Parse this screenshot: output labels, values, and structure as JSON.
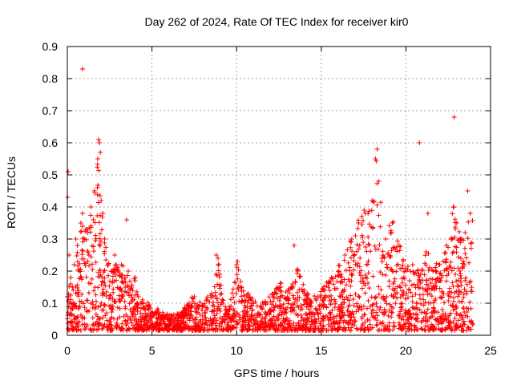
{
  "chart_data": {
    "type": "scatter",
    "title": "Day 262 of 2024, Rate Of TEC Index for receiver kir0",
    "xlabel": "GPS time / hours",
    "ylabel": "ROTI / TECUs",
    "xlim": [
      0,
      25
    ],
    "ylim": [
      0,
      0.9
    ],
    "x_ticks": [
      "0",
      "5",
      "10",
      "15",
      "20",
      "25"
    ],
    "y_ticks": [
      "0",
      "0.1",
      "0.2",
      "0.3",
      "0.4",
      "0.5",
      "0.6",
      "0.7",
      "0.8",
      "0.9"
    ],
    "grid": true,
    "marker": "+",
    "marker_color": "#ff0000",
    "series": [
      {
        "name": "ROTI",
        "x": [
          0.0,
          0.1,
          0.2,
          0.3,
          0.4,
          0.5,
          0.6,
          0.7,
          0.8,
          0.9,
          1.0,
          1.1,
          1.2,
          1.4,
          1.6,
          1.8,
          1.9,
          2.0,
          2.1,
          2.2,
          2.4,
          2.6,
          2.8,
          3.0,
          3.2,
          3.4,
          3.6,
          3.8,
          4.0,
          4.2,
          4.4,
          4.6,
          4.8,
          5.0,
          5.3,
          5.6,
          6.0,
          6.4,
          6.8,
          7.2,
          7.5,
          7.8,
          8.2,
          8.6,
          8.9,
          9.2,
          9.6,
          10.0,
          10.3,
          10.6,
          11.0,
          11.4,
          11.8,
          12.2,
          12.6,
          13.0,
          13.3,
          13.6,
          14.0,
          14.4,
          14.8,
          15.2,
          15.6,
          16.0,
          16.4,
          16.8,
          17.2,
          17.6,
          18.0,
          18.2,
          18.4,
          18.8,
          19.2,
          19.6,
          20.0,
          20.4,
          20.8,
          21.2,
          21.6,
          22.0,
          22.4,
          22.8,
          23.0,
          23.2,
          23.5,
          23.8,
          0.05,
          0.9,
          1.85,
          1.95,
          0.02,
          18.3,
          20.8,
          22.85,
          8.8,
          10.05,
          13.4,
          3.5,
          21.3,
          23.65
        ],
        "y": [
          0.12,
          0.25,
          0.18,
          0.15,
          0.22,
          0.3,
          0.28,
          0.2,
          0.35,
          0.38,
          0.3,
          0.33,
          0.32,
          0.4,
          0.45,
          0.55,
          0.6,
          0.42,
          0.38,
          0.3,
          0.22,
          0.2,
          0.25,
          0.2,
          0.22,
          0.18,
          0.2,
          0.15,
          0.17,
          0.12,
          0.1,
          0.08,
          0.09,
          0.06,
          0.07,
          0.06,
          0.05,
          0.05,
          0.06,
          0.1,
          0.12,
          0.09,
          0.11,
          0.12,
          0.24,
          0.1,
          0.08,
          0.22,
          0.15,
          0.12,
          0.1,
          0.09,
          0.1,
          0.12,
          0.15,
          0.12,
          0.16,
          0.2,
          0.14,
          0.1,
          0.12,
          0.14,
          0.18,
          0.2,
          0.25,
          0.3,
          0.35,
          0.38,
          0.42,
          0.55,
          0.48,
          0.3,
          0.35,
          0.28,
          0.2,
          0.22,
          0.18,
          0.26,
          0.2,
          0.22,
          0.28,
          0.4,
          0.35,
          0.3,
          0.32,
          0.38,
          0.51,
          0.83,
          0.61,
          0.57,
          0.43,
          0.58,
          0.6,
          0.68,
          0.25,
          0.23,
          0.28,
          0.36,
          0.38,
          0.45
        ]
      }
    ]
  }
}
